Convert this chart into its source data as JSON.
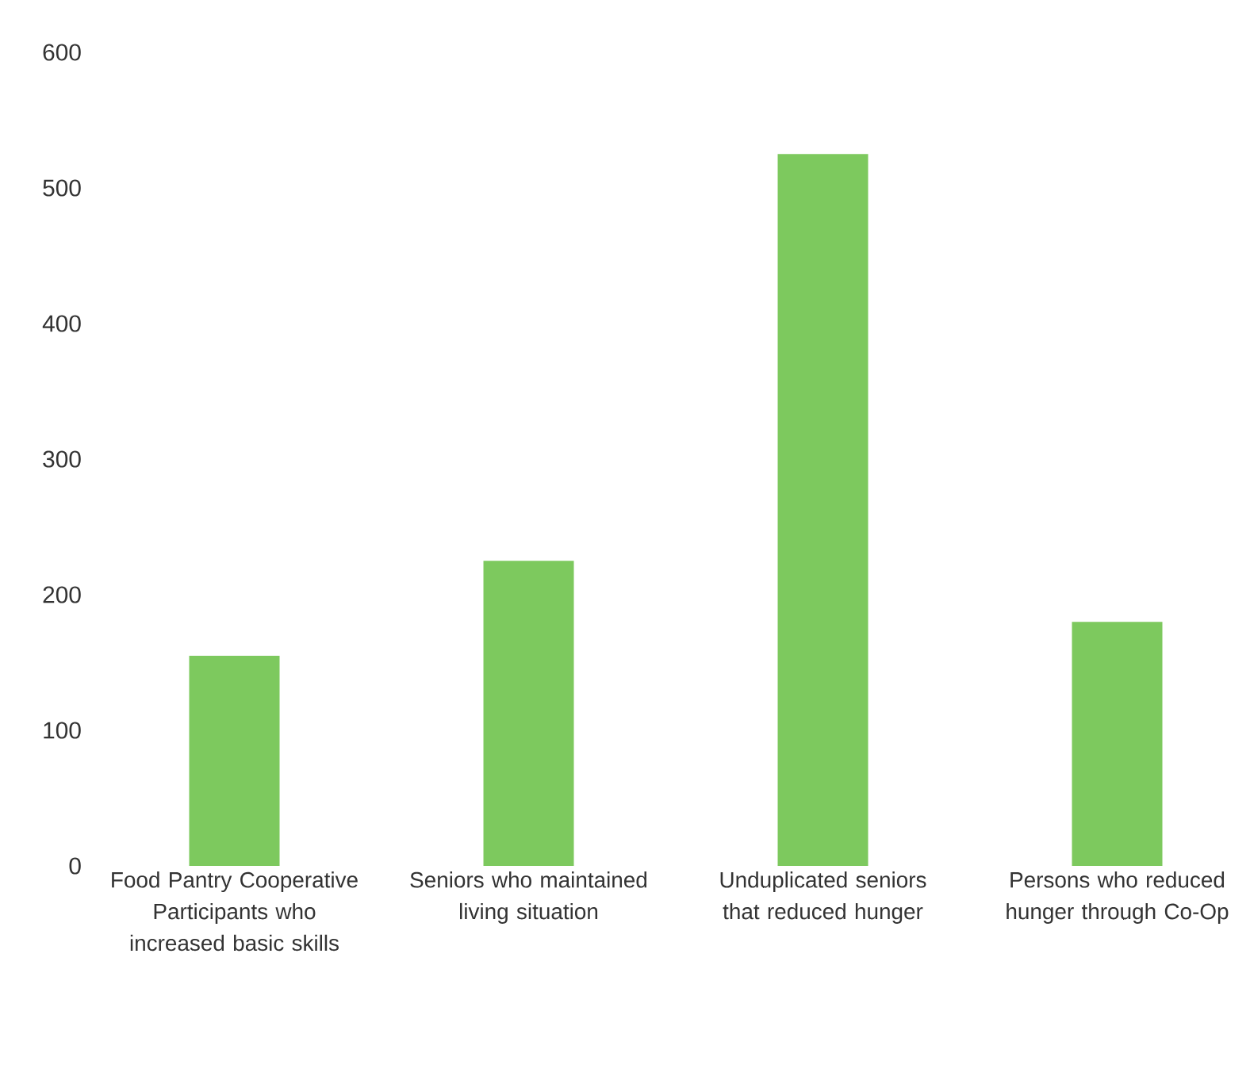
{
  "chart_data": {
    "type": "bar",
    "categories": [
      "Food Pantry Cooperative Participants who increased basic skills",
      "Seniors who maintained living situation",
      "Unduplicated seniors that reduced hunger",
      "Persons who reduced hunger through Co-Op"
    ],
    "values": [
      155,
      225,
      525,
      180
    ],
    "color": "#7dc95e",
    "ylim": [
      0,
      600
    ],
    "yticks": [
      0,
      100,
      200,
      300,
      400,
      500,
      600
    ],
    "grid": false
  }
}
